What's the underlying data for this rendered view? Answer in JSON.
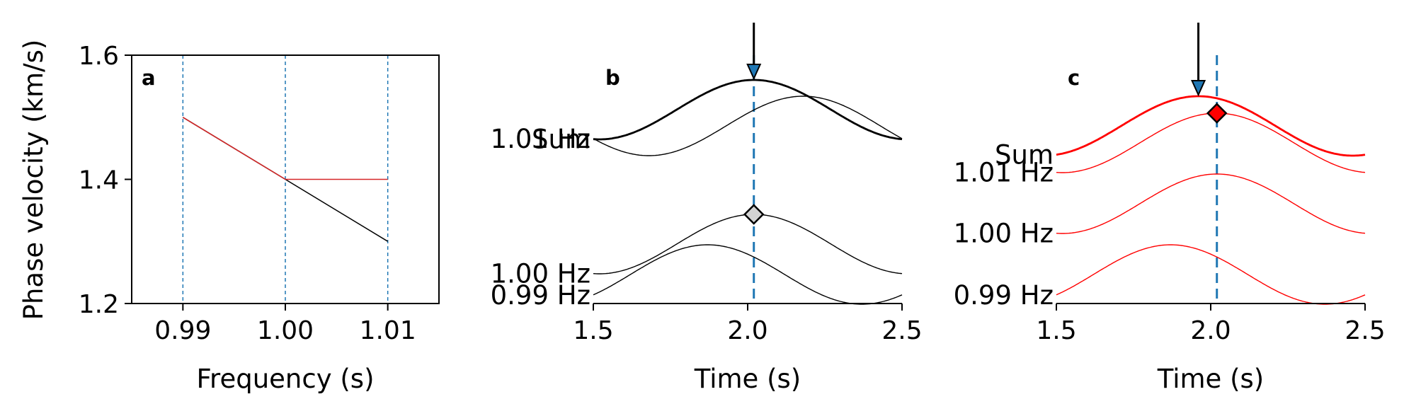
{
  "chart_data": [
    {
      "panel": "a",
      "type": "line",
      "xlabel": "Frequency (s)",
      "ylabel": "Phase velocity (km/s)",
      "xlim": [
        0.985,
        1.015
      ],
      "ylim": [
        1.2,
        1.6
      ],
      "xticks": [
        "0.99",
        "1.00",
        "1.01"
      ],
      "yticks": [
        "1.2",
        "1.4",
        "1.6"
      ],
      "vlines": [
        0.99,
        1.0,
        1.01
      ],
      "series": [
        {
          "color": "#000000",
          "x": [
            0.99,
            1.0,
            1.01
          ],
          "y": [
            1.5,
            1.4,
            1.3
          ]
        },
        {
          "color": "#d62728",
          "x": [
            0.99,
            1.0,
            1.01
          ],
          "y": [
            1.5,
            1.4,
            1.4
          ]
        }
      ]
    },
    {
      "panel": "b",
      "type": "line",
      "xlabel": "Time (s)",
      "xlim": [
        1.5,
        2.5
      ],
      "xticks": [
        "1.5",
        "2.0",
        "2.5"
      ],
      "color": "#000000",
      "vline": 2.02,
      "arrow_time": 2.02,
      "marker_time": 2.02,
      "marker_color": "#d3d3d3",
      "traces": [
        {
          "label": "Sum",
          "peak_time": 2.02,
          "bold": true
        },
        {
          "label": "1.01 Hz",
          "peak_time": 2.18
        },
        {
          "label": "1.00 Hz",
          "peak_time": 2.02
        },
        {
          "label": "0.99 Hz",
          "peak_time": 1.87
        }
      ]
    },
    {
      "panel": "c",
      "type": "line",
      "xlabel": "Time (s)",
      "xlim": [
        1.5,
        2.5
      ],
      "xticks": [
        "1.5",
        "2.0",
        "2.5"
      ],
      "color": "#ff0000",
      "vline": 2.02,
      "arrow_time": 1.96,
      "marker_time": 2.02,
      "marker_color": "#ff0000",
      "traces": [
        {
          "label": "Sum",
          "peak_time": 1.96,
          "bold": true
        },
        {
          "label": "1.01 Hz",
          "peak_time": 2.02
        },
        {
          "label": "1.00 Hz",
          "peak_time": 2.02
        },
        {
          "label": "0.99 Hz",
          "peak_time": 1.87
        }
      ]
    }
  ],
  "colors": {
    "guide_line": "#1f77b4",
    "arrow_head": "#1f77b4",
    "axis": "#000000"
  }
}
